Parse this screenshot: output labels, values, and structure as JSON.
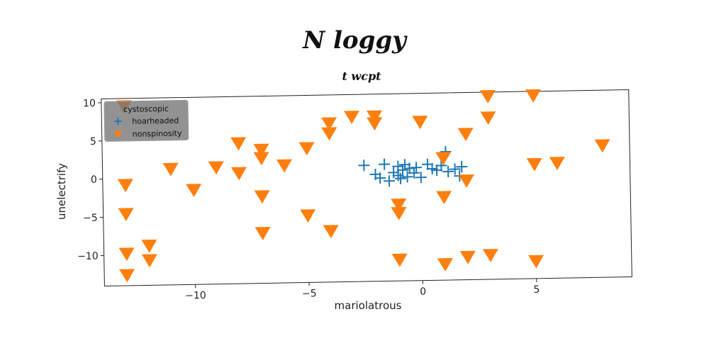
{
  "chart_data": {
    "type": "scatter",
    "title": "N loggy",
    "subtitle": "t wcpt",
    "xlabel": "mariolatrous",
    "ylabel": "unelectrify",
    "xlim": [
      -14,
      9.2
    ],
    "ylim": [
      -14,
      10.5
    ],
    "xticks": [
      -10,
      -5,
      0,
      5
    ],
    "yticks": [
      -10,
      -5,
      0,
      5,
      10
    ],
    "xtick_labels": [
      "−10",
      "−5",
      "0",
      "5"
    ],
    "ytick_labels": [
      "−10",
      "−5",
      "0",
      "5",
      "10"
    ],
    "legend": {
      "title": "cystoscopic",
      "position": "top-left",
      "entries": [
        "hoarheaded",
        "nonspinosity"
      ]
    },
    "series": [
      {
        "name": "hoarheaded",
        "marker": "plus",
        "color": "#1f77b4",
        "points": [
          [
            -2.5,
            1.2
          ],
          [
            -2.0,
            0.0
          ],
          [
            -1.6,
            1.3
          ],
          [
            -1.8,
            -0.5
          ],
          [
            -1.4,
            -0.9
          ],
          [
            -1.2,
            0.2
          ],
          [
            -1.0,
            1.0
          ],
          [
            -1.0,
            -0.2
          ],
          [
            -0.8,
            0.5
          ],
          [
            -0.7,
            1.2
          ],
          [
            -0.5,
            0.7
          ],
          [
            -0.3,
            0.1
          ],
          [
            -0.2,
            0.8
          ],
          [
            0.0,
            -0.5
          ],
          [
            0.3,
            1.2
          ],
          [
            0.5,
            0.6
          ],
          [
            0.7,
            0.4
          ],
          [
            0.9,
            1.0
          ],
          [
            1.1,
            2.8
          ],
          [
            1.2,
            0.2
          ],
          [
            1.5,
            0.5
          ],
          [
            1.7,
            -0.4
          ],
          [
            1.8,
            0.8
          ],
          [
            -0.6,
            -0.4
          ],
          [
            -0.9,
            -0.6
          ]
        ]
      },
      {
        "name": "nonspinosity",
        "marker": "triangle_down",
        "color": "#ff7f0e",
        "points": [
          [
            -13.0,
            9.5
          ],
          [
            -13.0,
            -0.8
          ],
          [
            -13.0,
            -4.6
          ],
          [
            -13.0,
            -9.8
          ],
          [
            -13.0,
            -12.6
          ],
          [
            -12.0,
            -8.8
          ],
          [
            -12.0,
            -10.7
          ],
          [
            -11.0,
            1.2
          ],
          [
            -10.0,
            -1.6
          ],
          [
            -9.0,
            1.3
          ],
          [
            -8.0,
            4.4
          ],
          [
            -8.0,
            0.5
          ],
          [
            -7.0,
            3.5
          ],
          [
            -7.0,
            2.4
          ],
          [
            -7.0,
            -2.6
          ],
          [
            -7.0,
            -7.4
          ],
          [
            -6.0,
            1.4
          ],
          [
            -5.0,
            3.6
          ],
          [
            -5.0,
            -5.2
          ],
          [
            -4.0,
            6.8
          ],
          [
            -4.0,
            5.5
          ],
          [
            -4.0,
            -7.3
          ],
          [
            -3.0,
            7.6
          ],
          [
            -2.0,
            7.6
          ],
          [
            -2.0,
            6.7
          ],
          [
            -1.0,
            -4.0
          ],
          [
            -1.0,
            -5.1
          ],
          [
            -1.0,
            -11.2
          ],
          [
            0.0,
            6.8
          ],
          [
            1.0,
            2.0
          ],
          [
            1.0,
            -3.1
          ],
          [
            1.0,
            -11.9
          ],
          [
            2.0,
            5.1
          ],
          [
            2.0,
            -1.0
          ],
          [
            2.0,
            -11.0
          ],
          [
            3.0,
            10.0
          ],
          [
            3.0,
            7.2
          ],
          [
            3.0,
            -10.8
          ],
          [
            5.0,
            10.0
          ],
          [
            5.0,
            1.0
          ],
          [
            5.0,
            -11.7
          ],
          [
            6.0,
            1.1
          ],
          [
            8.0,
            3.3
          ]
        ]
      }
    ]
  }
}
